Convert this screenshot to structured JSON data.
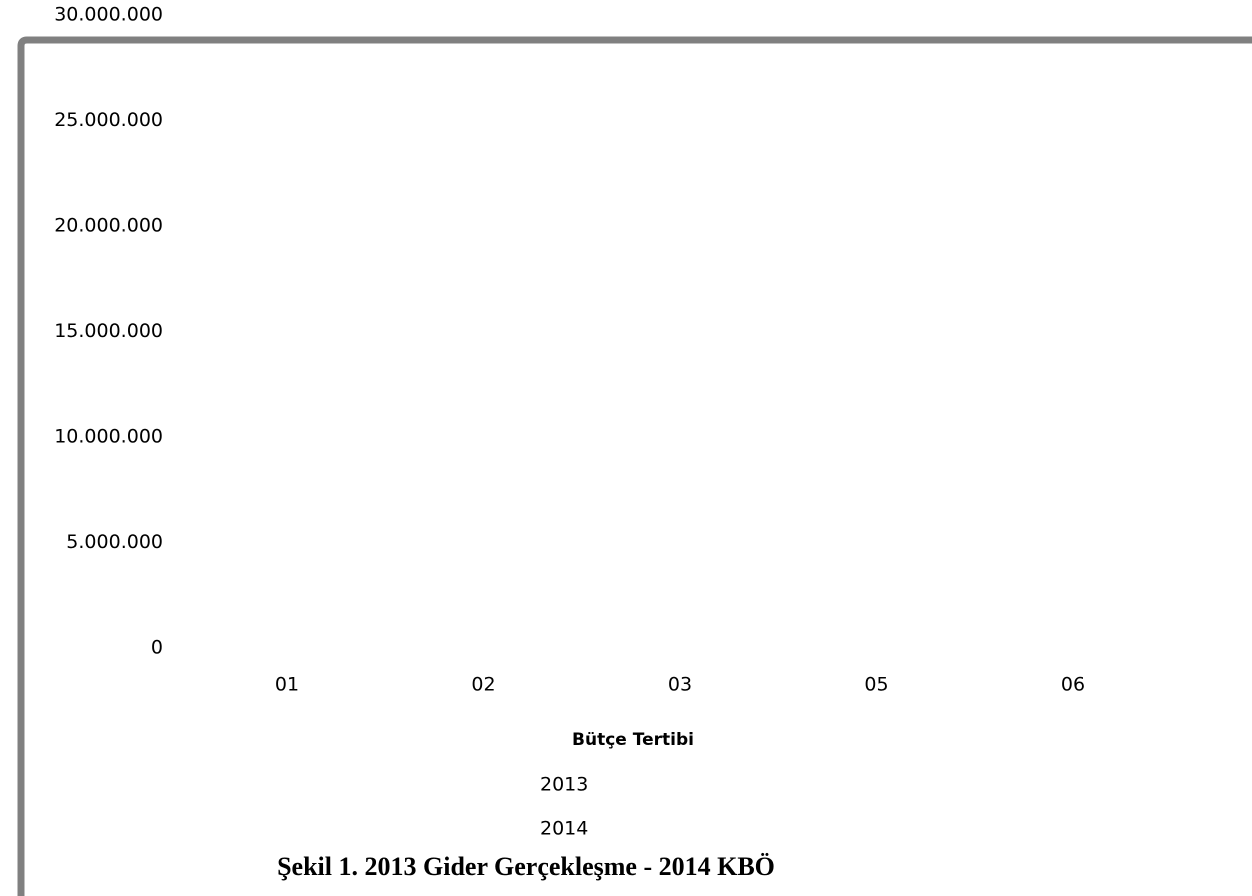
{
  "chart_data": {
    "type": "bar",
    "caption": "Şekil 1. 2013 Gider Gerçekleşme - 2014 KBÖ",
    "x_label": "Bütçe Tertibi",
    "categories": [
      "01",
      "02",
      "03",
      "05",
      "06"
    ],
    "series": [
      {
        "name": "2013",
        "values": [
          null,
          null,
          null,
          null,
          null
        ]
      },
      {
        "name": "2014",
        "values": [
          null,
          null,
          null,
          null,
          null
        ]
      }
    ],
    "ylim": [
      0,
      30000000
    ],
    "yticks": [
      0,
      {
        "value": 5000000,
        "label": "5.000.000"
      },
      {
        "value": 10000000,
        "label": "10.000.000"
      },
      {
        "value": 15000000,
        "label": "15.000.000"
      },
      {
        "value": 20000000,
        "label": "20.000.000"
      },
      {
        "value": 25000000,
        "label": "25.000.000"
      },
      {
        "value": 30000000,
        "label": "30.000.000"
      }
    ]
  }
}
